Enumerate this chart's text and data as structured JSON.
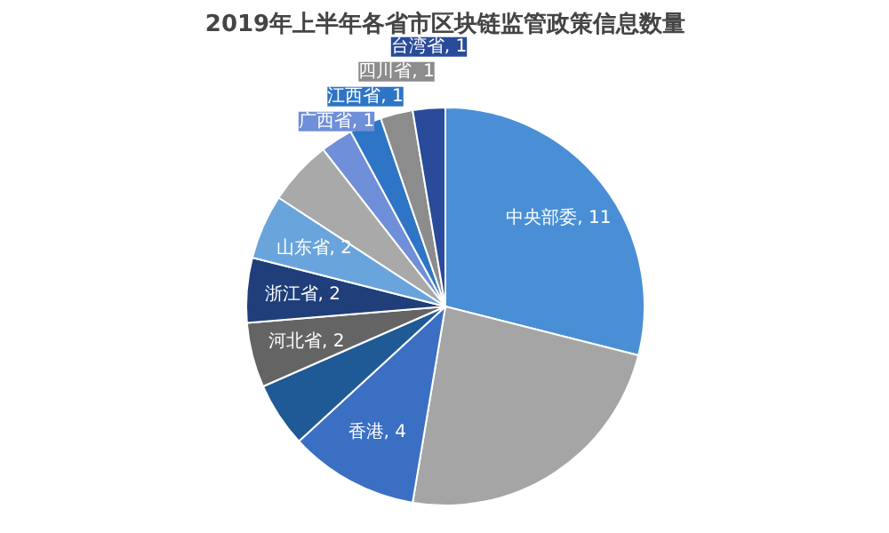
{
  "chart_data": {
    "type": "pie",
    "title": "2019年上半年各省市区块链监管政策信息数量",
    "categories": [
      "中央部委, 11",
      null,
      "香港, 4",
      null,
      "河北省, 2",
      "浙江省, 2",
      "山东省, 2",
      null,
      "广西省, 1",
      "江西省, 1",
      "四川省, 1",
      "台湾省, 1"
    ],
    "values": [
      11,
      9,
      4,
      2,
      2,
      2,
      2,
      2,
      1,
      1,
      1,
      1
    ],
    "colors": [
      "#4a8fd6",
      "#a5a5a5",
      "#3a6fc4",
      "#1f5a96",
      "#646464",
      "#1f3e7a",
      "#6aa4dc",
      "#a9a9a9",
      "#6f8fd8",
      "#2e75c6",
      "#8c8c8c",
      "#2a4b9a"
    ]
  }
}
